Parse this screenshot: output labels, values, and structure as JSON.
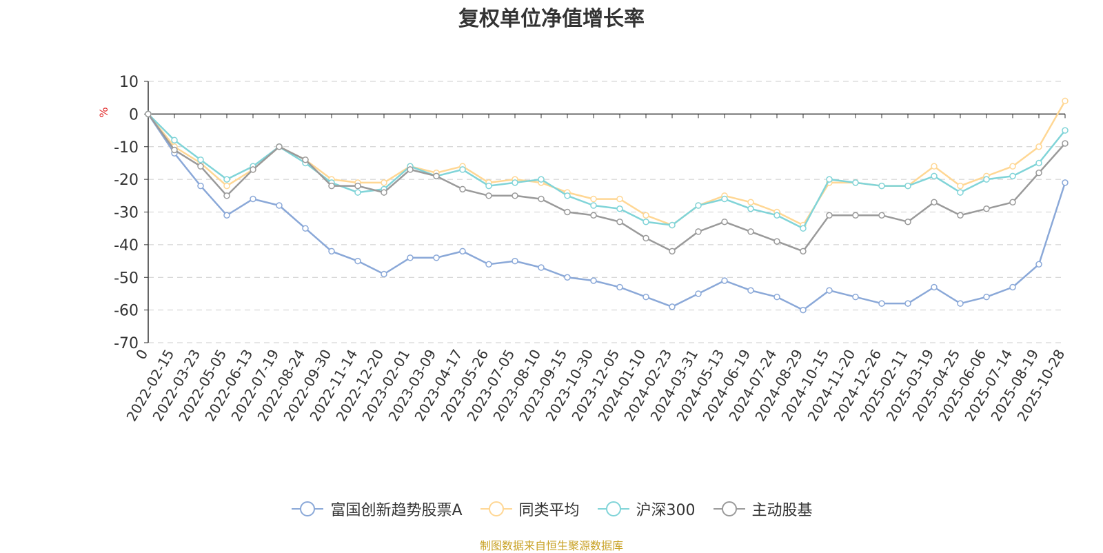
{
  "chart_data": {
    "type": "line",
    "title": "复权单位净值增长率",
    "ylabel": "%",
    "xlabel": "",
    "ylim": [
      -70,
      10
    ],
    "yticks": [
      10,
      0,
      -10,
      -20,
      -30,
      -40,
      -50,
      -60,
      -70
    ],
    "grid": true,
    "legend_position": "bottom",
    "x": [
      "0",
      "2022-02-15",
      "2022-03-23",
      "2022-05-05",
      "2022-06-13",
      "2022-07-19",
      "2022-08-24",
      "2022-09-30",
      "2022-11-14",
      "2022-12-20",
      "2023-02-01",
      "2023-03-09",
      "2023-04-17",
      "2023-05-26",
      "2023-07-05",
      "2023-08-10",
      "2023-09-15",
      "2023-10-30",
      "2023-12-05",
      "2024-01-10",
      "2024-02-23",
      "2024-03-31",
      "2024-05-13",
      "2024-06-19",
      "2024-07-24",
      "2024-08-29",
      "2024-10-15",
      "2024-11-20",
      "2024-12-26",
      "2025-02-11",
      "2025-03-19",
      "2025-04-25",
      "2025-06-06",
      "2025-07-14",
      "2025-08-19",
      "2025-10-28"
    ],
    "series": [
      {
        "name": "富国创新趋势股票A",
        "color": "#8aa8d8",
        "values": [
          0,
          -12,
          -22,
          -31,
          -26,
          -28,
          -35,
          -42,
          -45,
          -49,
          -44,
          -44,
          -42,
          -46,
          -45,
          -47,
          -50,
          -51,
          -53,
          -56,
          -59,
          -55,
          -51,
          -54,
          -56,
          -60,
          -54,
          -56,
          -58,
          -58,
          -53,
          -58,
          -56,
          -53,
          -46,
          -21
        ]
      },
      {
        "name": "同类平均",
        "color": "#ffd794",
        "values": [
          0,
          -10,
          -15,
          -22,
          -17,
          -10,
          -14,
          -20,
          -21,
          -21,
          -16,
          -18,
          -16,
          -21,
          -20,
          -21,
          -24,
          -26,
          -26,
          -31,
          -34,
          -28,
          -25,
          -27,
          -30,
          -34,
          -21,
          -21,
          -22,
          -22,
          -16,
          -22,
          -19,
          -16,
          -10,
          4
        ]
      },
      {
        "name": "沪深300",
        "color": "#80d4d8",
        "values": [
          0,
          -8,
          -14,
          -20,
          -16,
          -10,
          -15,
          -21,
          -24,
          -23,
          -16,
          -19,
          -17,
          -22,
          -21,
          -20,
          -25,
          -28,
          -29,
          -33,
          -34,
          -28,
          -26,
          -29,
          -31,
          -35,
          -20,
          -21,
          -22,
          -22,
          -19,
          -24,
          -20,
          -19,
          -15,
          -5
        ]
      },
      {
        "name": "主动股基",
        "color": "#9a9a9a",
        "values": [
          0,
          -11,
          -16,
          -25,
          -17,
          -10,
          -14,
          -22,
          -22,
          -24,
          -17,
          -19,
          -23,
          -25,
          -25,
          -26,
          -30,
          -31,
          -33,
          -38,
          -42,
          -36,
          -33,
          -36,
          -39,
          -42,
          -31,
          -31,
          -31,
          -33,
          -27,
          -31,
          -29,
          -27,
          -18,
          -9
        ]
      }
    ]
  },
  "source": "制图数据来自恒生聚源数据库"
}
